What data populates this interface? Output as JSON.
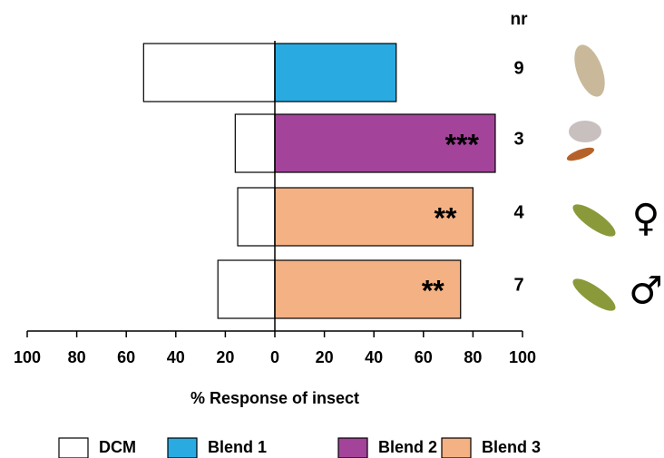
{
  "chart_data": {
    "type": "diverging-bar",
    "xlabel": "% Response of insect",
    "column_header": "nr",
    "categories": [
      "9",
      "3",
      "4",
      "7"
    ],
    "series": [
      {
        "name": "DCM",
        "color": "#ffffff",
        "values": [
          -53,
          -16,
          -15,
          -23
        ]
      },
      {
        "name": "Blend 1",
        "color": "#29abe2",
        "values": [
          49,
          null,
          null,
          null
        ]
      },
      {
        "name": "Blend 2",
        "color": "#a3449a",
        "values": [
          null,
          89,
          null,
          null
        ]
      },
      {
        "name": "Blend 3",
        "color": "#f4b183",
        "values": [
          null,
          null,
          80,
          75
        ]
      }
    ],
    "annotations": [
      null,
      "***",
      "**",
      "**"
    ],
    "sex_labels": [
      null,
      null,
      "♀",
      "♂"
    ],
    "xlim": [
      -100,
      100
    ],
    "xticks": [
      {
        "value": -100,
        "label": "100"
      },
      {
        "value": -80,
        "label": "80"
      },
      {
        "value": -60,
        "label": "60"
      },
      {
        "value": -40,
        "label": "40"
      },
      {
        "value": -20,
        "label": "20"
      },
      0,
      20,
      40,
      60,
      80,
      100
    ],
    "legend": "bottom"
  }
}
